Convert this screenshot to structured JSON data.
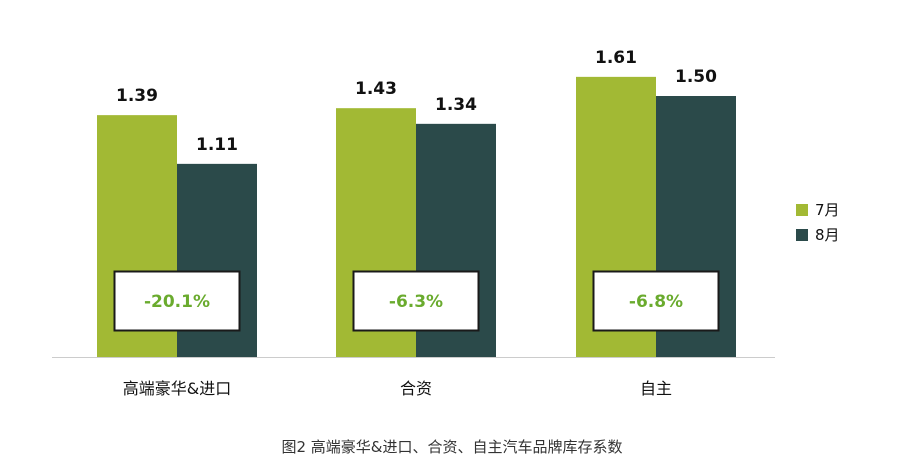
{
  "chart_data": {
    "type": "bar",
    "categories": [
      "高端豪华&进口",
      "合资",
      "自主"
    ],
    "series": [
      {
        "name": "7月",
        "values": [
          1.39,
          1.43,
          1.61
        ],
        "color": "#a2b934"
      },
      {
        "name": "8月",
        "values": [
          1.11,
          1.34,
          1.5
        ],
        "color": "#2b4a4a"
      }
    ],
    "value_labels": [
      [
        "1.39",
        "1.43",
        "1.61"
      ],
      [
        "1.11",
        "1.34",
        "1.50"
      ]
    ],
    "change_labels": [
      "-20.1%",
      "-6.3%",
      "-6.8%"
    ],
    "ylim": [
      0,
      1.8
    ],
    "grid": false,
    "legend": "right",
    "title": "",
    "xlabel": "",
    "ylabel": ""
  },
  "caption": "图2 高端豪华&进口、合资、自主汽车品牌库存系数",
  "colors": {
    "change_text": "#6aab2e",
    "axis": "#cccccc"
  }
}
